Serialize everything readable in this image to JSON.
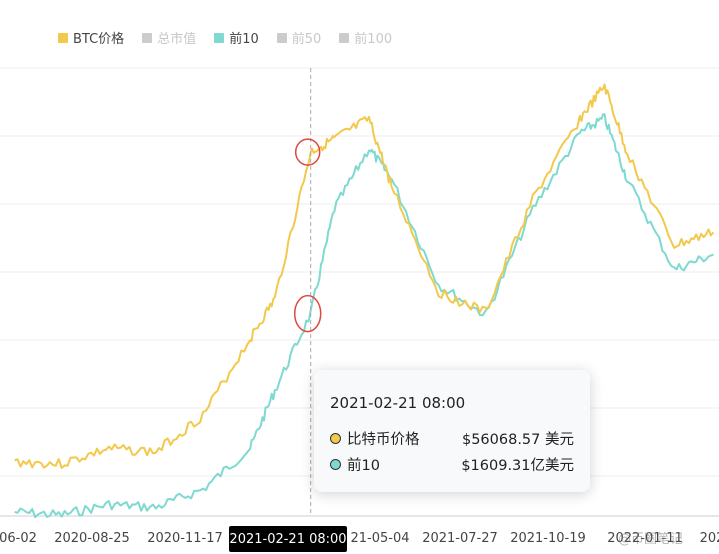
{
  "legend": [
    {
      "label": "BTC价格",
      "color": "#f2c94c",
      "active": true
    },
    {
      "label": "总市值",
      "color": "#cccccc",
      "active": false
    },
    {
      "label": "前10",
      "color": "#7ed9d0",
      "active": true
    },
    {
      "label": "前50",
      "color": "#cccccc",
      "active": false
    },
    {
      "label": "前100",
      "color": "#cccccc",
      "active": false
    }
  ],
  "tooltip": {
    "date": "2021-02-21 08:00",
    "rows": [
      {
        "name": "比特币价格",
        "value": "$56068.57 美元",
        "color": "#f2c94c"
      },
      {
        "name": "前10",
        "value": "$1609.31亿美元",
        "color": "#7ed9d0"
      }
    ]
  },
  "x_axis": {
    "ticks": [
      "06-02",
      "2020-08-25",
      "2020-11-17",
      "21-05-04",
      "2021-07-27",
      "2021-10-19",
      "2022-01-11",
      "202"
    ],
    "highlighted": "2021-02-21 08:00"
  },
  "watermark": "@币圈笔记",
  "chart_data": {
    "type": "line",
    "title": "",
    "xlabel": "",
    "ylabel": "",
    "grid": true,
    "legend_position": "top-left",
    "x": [
      "2020-06-02",
      "2020-07-14",
      "2020-08-25",
      "2020-10-06",
      "2020-11-17",
      "2020-12-29",
      "2021-01-20",
      "2021-02-21",
      "2021-03-14",
      "2021-04-14",
      "2021-05-04",
      "2021-06-15",
      "2021-07-27",
      "2021-09-07",
      "2021-10-19",
      "2021-11-10",
      "2021-11-30",
      "2022-01-11",
      "2022-02-15"
    ],
    "series": [
      {
        "name": "BTC价格",
        "color": "#f2c94c",
        "values": [
          9500,
          9200,
          11500,
          11000,
          16500,
          28000,
          34000,
          56068.57,
          58000,
          61000,
          51000,
          35000,
          32000,
          49000,
          61000,
          66000,
          56000,
          42000,
          44000
        ]
      },
      {
        "name": "前10",
        "color": "#7ed9d0",
        "values": [
          300,
          280,
          350,
          330,
          450,
          720,
          1100,
          1609.31,
          2300,
          2700,
          2500,
          1800,
          1600,
          2300,
          2800,
          2900,
          2500,
          1900,
          2000
        ]
      }
    ]
  }
}
